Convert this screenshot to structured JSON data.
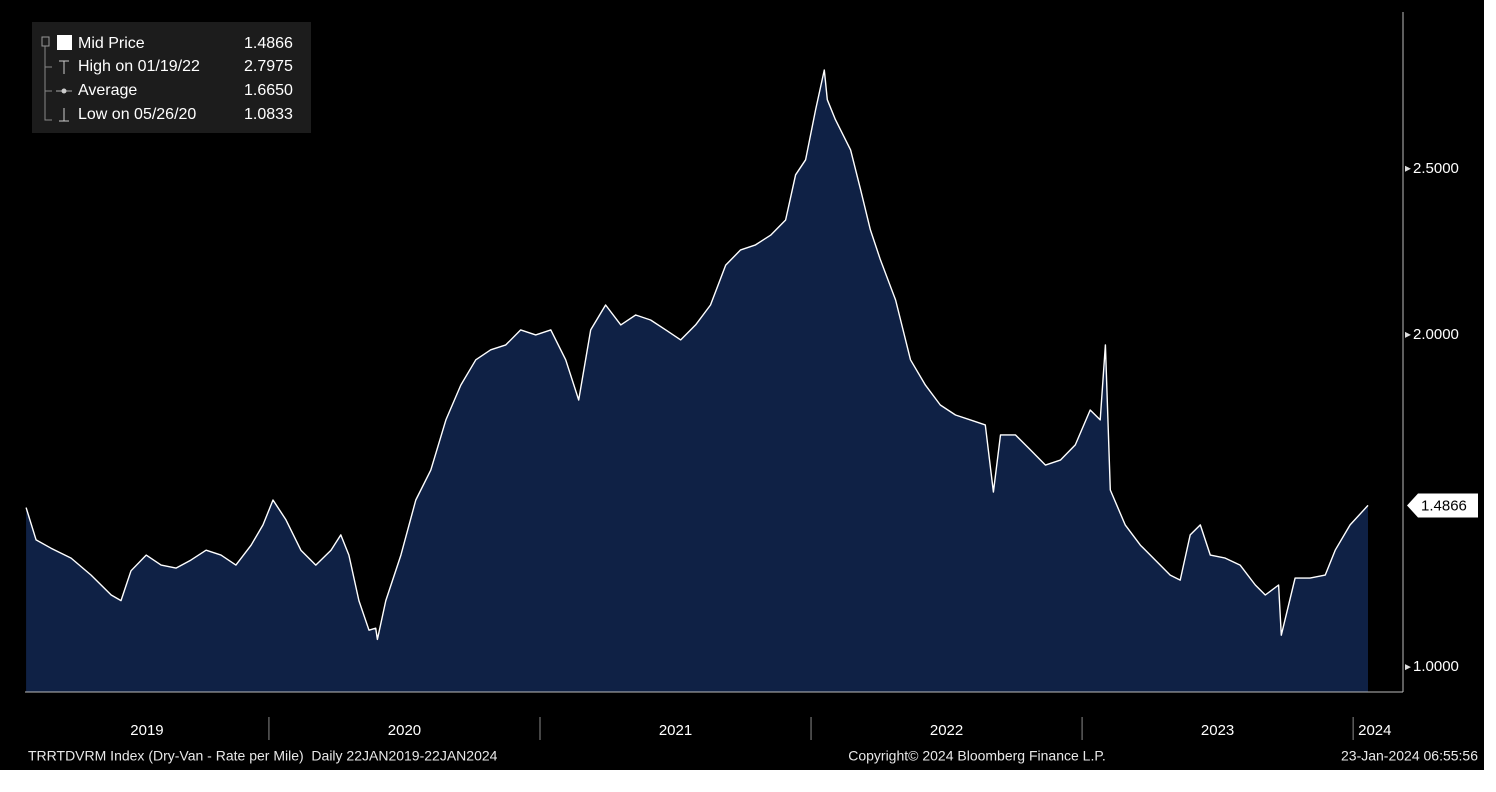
{
  "chart_data": {
    "type": "area",
    "series": [
      {
        "name": "Mid Price",
        "color": "#ffffff",
        "fill": "#0f2145",
        "values": [
          1.48,
          1.383,
          1.358,
          1.328,
          1.277,
          1.217,
          1.2,
          1.29,
          1.337,
          1.307,
          1.298,
          1.322,
          1.352,
          1.337,
          1.307,
          1.367,
          1.428,
          1.503,
          1.443,
          1.352,
          1.307,
          1.352,
          1.398,
          1.337,
          1.2,
          1.111,
          1.117,
          1.0833,
          1.2,
          1.337,
          1.503,
          1.593,
          1.744,
          1.849,
          1.925,
          1.955,
          1.97,
          2.015,
          2.0,
          2.015,
          1.925,
          1.804,
          2.015,
          2.09,
          2.03,
          2.06,
          2.045,
          2.015,
          1.985,
          2.03,
          2.09,
          2.21,
          2.256,
          2.271,
          2.3,
          2.346,
          2.482,
          2.527,
          2.678,
          2.7975,
          2.708,
          2.648,
          2.557,
          2.437,
          2.316,
          2.226,
          2.105,
          1.925,
          1.849,
          1.789,
          1.759,
          1.744,
          1.729,
          1.527,
          1.699,
          1.699,
          1.654,
          1.608,
          1.623,
          1.669,
          1.774,
          1.744,
          1.97,
          1.533,
          1.428,
          1.367,
          1.322,
          1.277,
          1.262,
          1.398,
          1.428,
          1.337,
          1.328,
          1.307,
          1.247,
          1.217,
          1.247,
          1.096,
          1.268,
          1.268,
          1.277,
          1.352,
          1.428,
          1.4866
        ]
      }
    ],
    "x": [
      2019.104,
      2019.141,
      2019.196,
      2019.27,
      2019.344,
      2019.418,
      2019.454,
      2019.491,
      2019.547,
      2019.602,
      2019.657,
      2019.712,
      2019.768,
      2019.823,
      2019.878,
      2019.934,
      2019.978,
      2020.015,
      2020.063,
      2020.118,
      2020.173,
      2020.229,
      2020.265,
      2020.295,
      2020.332,
      2020.369,
      2020.394,
      2020.4,
      2020.431,
      2020.487,
      2020.542,
      2020.597,
      2020.653,
      2020.708,
      2020.763,
      2020.818,
      2020.874,
      2020.929,
      2020.984,
      2021.04,
      2021.095,
      2021.143,
      2021.187,
      2021.242,
      2021.298,
      2021.353,
      2021.408,
      2021.464,
      2021.519,
      2021.574,
      2021.629,
      2021.685,
      2021.74,
      2021.795,
      2021.851,
      2021.906,
      2021.943,
      2021.98,
      2022.017,
      2022.049,
      2022.06,
      2022.09,
      2022.146,
      2022.183,
      2022.219,
      2022.256,
      2022.312,
      2022.367,
      2022.422,
      2022.477,
      2022.533,
      2022.588,
      2022.643,
      2022.673,
      2022.699,
      2022.754,
      2022.809,
      2022.865,
      2022.92,
      2022.975,
      2023.03,
      2023.067,
      2023.086,
      2023.104,
      2023.159,
      2023.215,
      2023.27,
      2023.325,
      2023.362,
      2023.399,
      2023.436,
      2023.473,
      2023.528,
      2023.583,
      2023.639,
      2023.676,
      2023.725,
      2023.735,
      2023.786,
      2023.841,
      2023.897,
      2023.934,
      2023.989,
      2024.055
    ],
    "xlim": [
      2019.1,
      2024.184
    ],
    "xticks": [
      {
        "value": 2019,
        "label": "2019"
      },
      {
        "value": 2020,
        "label": "2020"
      },
      {
        "value": 2021,
        "label": "2021"
      },
      {
        "value": 2022,
        "label": "2022"
      },
      {
        "value": 2023,
        "label": "2023"
      },
      {
        "value": 2024,
        "label": "2024"
      }
    ],
    "ylim": [
      0.925,
      2.96
    ],
    "yticks": [
      {
        "value": 1,
        "label": "1.0000"
      },
      {
        "value": 2,
        "label": "2.0000"
      },
      {
        "value": 2.5,
        "label": "2.5000"
      }
    ],
    "legend": [
      {
        "label": "Mid Price",
        "value": 1.4866
      },
      {
        "label": "High on 01/19/22",
        "value": 2.7975
      },
      {
        "label": "Average",
        "value": 1.665,
        "value_label": "1.6650"
      },
      {
        "label": "Low on 05/26/20",
        "value": 1.0833
      }
    ],
    "footer": {
      "left": "TRRTDVRM Index (Dry-Van - Rate per Mile)  Daily 22JAN2019-22JAN2024",
      "center": "Copyright© 2024 Bloomberg Finance L.P.",
      "right": "23-Jan-2024 06:55:56"
    }
  }
}
